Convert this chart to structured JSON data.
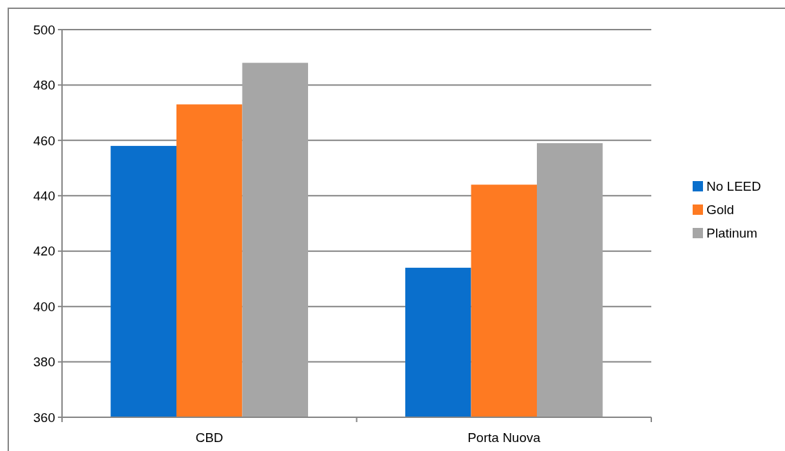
{
  "chart_data": {
    "type": "bar",
    "categories": [
      "CBD",
      "Porta Nuova"
    ],
    "series": [
      {
        "name": "No LEED",
        "color": "#0a6fcc",
        "values": [
          458,
          414
        ]
      },
      {
        "name": "Gold",
        "color": "#fe7a22",
        "values": [
          473,
          444
        ]
      },
      {
        "name": "Platinum",
        "color": "#a6a6a6",
        "values": [
          488,
          459
        ]
      }
    ],
    "ylim": [
      360,
      500
    ],
    "yticks": [
      360,
      380,
      400,
      420,
      440,
      460,
      480,
      500
    ],
    "grid": "y",
    "legend": "right"
  }
}
